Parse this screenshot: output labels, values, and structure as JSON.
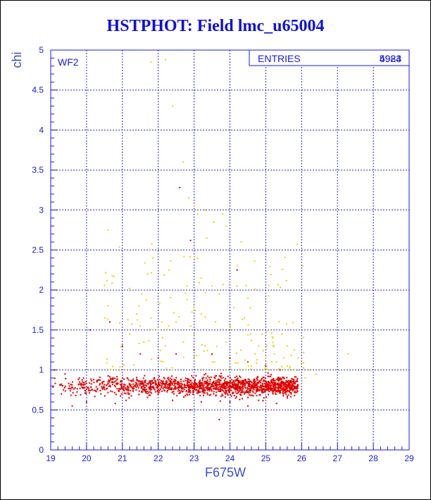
{
  "chart_data": {
    "type": "scatter",
    "title": "HSTPHOT: Field lmc_u65004",
    "xlabel": "F675W",
    "ylabel": "chi",
    "xlim": [
      19,
      29
    ],
    "ylim": [
      0,
      5
    ],
    "xticks": [
      "19",
      "20",
      "21",
      "22",
      "23",
      "24",
      "25",
      "26",
      "27",
      "28",
      "29"
    ],
    "yticks": [
      "0",
      "0.5",
      "1",
      "1.5",
      "2",
      "2.5",
      "3",
      "3.5",
      "4",
      "4.5",
      "5"
    ],
    "grid": true,
    "panel_label": "WF2",
    "stats": {
      "label": "ENTRIES",
      "values": [
        "5924",
        "4983"
      ]
    },
    "colors": {
      "title": "#1010d8",
      "axis": "#1a1ae0",
      "grid": "#2828c8",
      "series_red": "#e00000",
      "series_yellow": "#f0d000"
    },
    "series": [
      {
        "color": "#f0d000",
        "points": [
          [
            21.8,
            4.85
          ],
          [
            22.2,
            4.88
          ],
          [
            22.4,
            4.3
          ],
          [
            22.7,
            3.6
          ],
          [
            22.85,
            3.15
          ],
          [
            23.0,
            3.05
          ],
          [
            23.1,
            2.95
          ],
          [
            23.3,
            3.0
          ],
          [
            23.35,
            2.65
          ],
          [
            23.55,
            2.85
          ],
          [
            23.8,
            2.95
          ],
          [
            23.9,
            2.8
          ],
          [
            20.6,
            2.75
          ],
          [
            21.85,
            2.4
          ],
          [
            21.7,
            2.2
          ],
          [
            22.3,
            2.25
          ],
          [
            22.8,
            2.05
          ],
          [
            23.2,
            2.15
          ],
          [
            23.5,
            2.05
          ],
          [
            23.7,
            1.95
          ],
          [
            24.2,
            2.05
          ],
          [
            24.5,
            1.9
          ],
          [
            20.6,
            1.8
          ],
          [
            21.0,
            1.75
          ],
          [
            21.4,
            1.7
          ],
          [
            21.8,
            1.65
          ],
          [
            22.1,
            1.6
          ],
          [
            22.3,
            1.55
          ],
          [
            22.5,
            1.6
          ],
          [
            22.9,
            1.55
          ],
          [
            23.2,
            1.7
          ],
          [
            23.6,
            1.6
          ],
          [
            24.0,
            1.55
          ],
          [
            24.4,
            1.65
          ],
          [
            24.9,
            1.45
          ],
          [
            25.2,
            1.4
          ],
          [
            25.6,
            1.3
          ],
          [
            25.8,
            1.25
          ],
          [
            21.2,
            1.45
          ],
          [
            21.6,
            1.35
          ],
          [
            22.2,
            1.3
          ],
          [
            22.7,
            1.35
          ],
          [
            23.3,
            1.3
          ],
          [
            23.9,
            1.35
          ],
          [
            24.3,
            1.25
          ],
          [
            24.7,
            1.2
          ],
          [
            25.0,
            1.15
          ],
          [
            25.3,
            1.1
          ],
          [
            25.6,
            1.05
          ],
          [
            26.0,
            1.1
          ],
          [
            26.2,
            1.0
          ],
          [
            26.4,
            0.95
          ],
          [
            26.1,
            0.9
          ],
          [
            27.3,
            1.2
          ],
          [
            25.9,
            1.15
          ],
          [
            25.5,
            1.15
          ],
          [
            24.8,
            1.3
          ],
          [
            23.0,
            1.45
          ],
          [
            22.0,
            1.5
          ],
          [
            21.5,
            1.55
          ],
          [
            24.6,
            1.05
          ],
          [
            25.1,
            1.0
          ]
        ]
      },
      {
        "color": "#e00000",
        "points": [
          [
            22.6,
            3.28
          ],
          [
            22.9,
            2.62
          ],
          [
            24.2,
            2.25
          ],
          [
            20.65,
            1.6
          ],
          [
            20.1,
            1.5
          ],
          [
            21.0,
            1.3
          ],
          [
            21.5,
            1.2
          ],
          [
            22.0,
            1.15
          ],
          [
            22.5,
            1.2
          ],
          [
            23.0,
            1.25
          ],
          [
            23.5,
            1.2
          ],
          [
            24.0,
            1.15
          ],
          [
            24.5,
            1.1
          ],
          [
            25.0,
            1.05
          ],
          [
            25.4,
            1.0
          ],
          [
            19.1,
            1.0
          ],
          [
            19.4,
            0.95
          ],
          [
            19.8,
            0.9
          ],
          [
            20.2,
            0.88
          ],
          [
            20.6,
            0.85
          ],
          [
            21.0,
            0.9
          ],
          [
            21.4,
            0.88
          ],
          [
            21.8,
            0.82
          ],
          [
            22.2,
            0.8
          ],
          [
            22.6,
            0.78
          ],
          [
            23.0,
            0.8
          ],
          [
            23.4,
            0.78
          ],
          [
            23.8,
            0.8
          ],
          [
            24.2,
            0.82
          ],
          [
            24.6,
            0.8
          ],
          [
            25.0,
            0.82
          ],
          [
            25.4,
            0.8
          ],
          [
            25.7,
            0.78
          ],
          [
            19.3,
            0.7
          ],
          [
            19.7,
            0.68
          ],
          [
            20.4,
            0.7
          ],
          [
            21.2,
            0.7
          ],
          [
            22.0,
            0.72
          ],
          [
            22.8,
            0.7
          ],
          [
            23.6,
            0.68
          ],
          [
            24.4,
            0.7
          ],
          [
            25.2,
            0.7
          ],
          [
            25.8,
            0.68
          ],
          [
            20.0,
            0.6
          ],
          [
            21.1,
            0.62
          ],
          [
            22.4,
            0.62
          ],
          [
            23.2,
            0.6
          ],
          [
            24.0,
            0.6
          ],
          [
            24.8,
            0.62
          ],
          [
            25.6,
            0.65
          ],
          [
            19.6,
            0.55
          ],
          [
            20.8,
            0.58
          ],
          [
            23.7,
            0.38
          ],
          [
            22.9,
            0.5
          ],
          [
            24.5,
            0.55
          ],
          [
            25.3,
            0.58
          ]
        ]
      }
    ],
    "cloud": {
      "x_range": [
        19.0,
        25.9
      ],
      "y_center": 0.8,
      "y_spread": 0.13,
      "density_peak_x": 24.6,
      "count": 1600
    }
  }
}
